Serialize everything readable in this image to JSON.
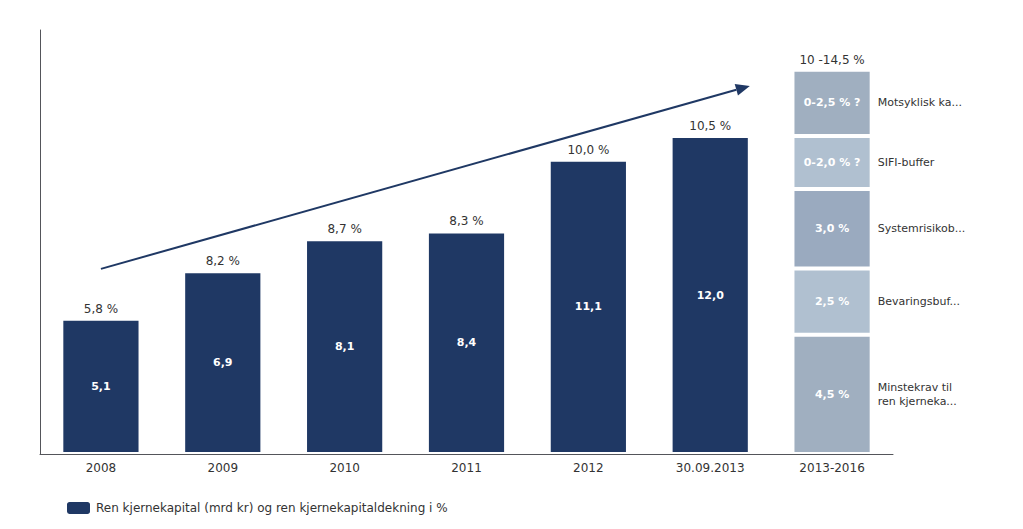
{
  "chart_data": {
    "type": "bar",
    "categories": [
      "2008",
      "2009",
      "2010",
      "2011",
      "2012",
      "30.09.2013",
      "2013-2016"
    ],
    "series": [
      {
        "name": "Ren kjernekapital (mrd kr) og ren kjernekapitaldekning i %",
        "color": "#1F3864",
        "values": [
          5.1,
          6.9,
          8.1,
          8.4,
          11.1,
          12.0,
          null
        ],
        "value_labels": [
          "5,1",
          "6,9",
          "8,1",
          "8,4",
          "11,1",
          "12,0",
          null
        ]
      },
      {
        "color": "#a0afc0",
        "values": [
          null,
          null,
          null,
          null,
          null,
          null,
          4.5
        ],
        "value_labels": [
          null,
          null,
          null,
          null,
          null,
          null,
          "4,5 %"
        ]
      },
      {
        "color": "#b0c0d0",
        "values": [
          null,
          null,
          null,
          null,
          null,
          null,
          2.5
        ],
        "value_labels": [
          null,
          null,
          null,
          null,
          null,
          null,
          "2,5 %"
        ]
      },
      {
        "color": "#9aaabf",
        "values": [
          null,
          null,
          null,
          null,
          null,
          null,
          3.0
        ],
        "value_labels": [
          null,
          null,
          null,
          null,
          null,
          null,
          "3,0 %"
        ]
      },
      {
        "color": "#b0c0d0",
        "values": [
          null,
          null,
          null,
          null,
          null,
          null,
          2.0
        ],
        "value_labels": [
          null,
          null,
          null,
          null,
          null,
          null,
          "0-2,0 % ?"
        ]
      },
      {
        "color": "#a0afc0",
        "values": [
          null,
          null,
          null,
          null,
          null,
          null,
          2.5
        ],
        "value_labels": [
          null,
          null,
          null,
          null,
          null,
          null,
          "0-2,5 % ?"
        ]
      }
    ],
    "stacked": true,
    "data_labels": true,
    "ylim": [
      0,
      16
    ],
    "yticks": [],
    "tick_labels": "x",
    "grid": false,
    "legend": "lower left",
    "annotations": [
      {
        "text": "5,8 %",
        "x": "2008"
      },
      {
        "text": "8,2 %",
        "x": "2009"
      },
      {
        "text": "8,7 %",
        "x": "2010"
      },
      {
        "text": "8,3 %",
        "x": "2011"
      },
      {
        "text": "10,0 %",
        "x": "2012"
      },
      {
        "text": "10,5 %",
        "x": "30.09.2013"
      },
      {
        "text": "10 -14,5 %",
        "x": "2013-2016"
      },
      {
        "text": "Minstekrav til\nren kjerneka...",
        "x": "2013-2016",
        "series": 1
      },
      {
        "text": "Bevaringsbuf...",
        "x": "2013-2016",
        "series": 2
      },
      {
        "text": "Systemrisikob...",
        "x": "2013-2016",
        "series": 3
      },
      {
        "text": "SIFI-buffer",
        "x": "2013-2016",
        "series": 4
      },
      {
        "text": "Motsyklisk ka...",
        "x": "2013-2016",
        "series": 5
      }
    ]
  }
}
